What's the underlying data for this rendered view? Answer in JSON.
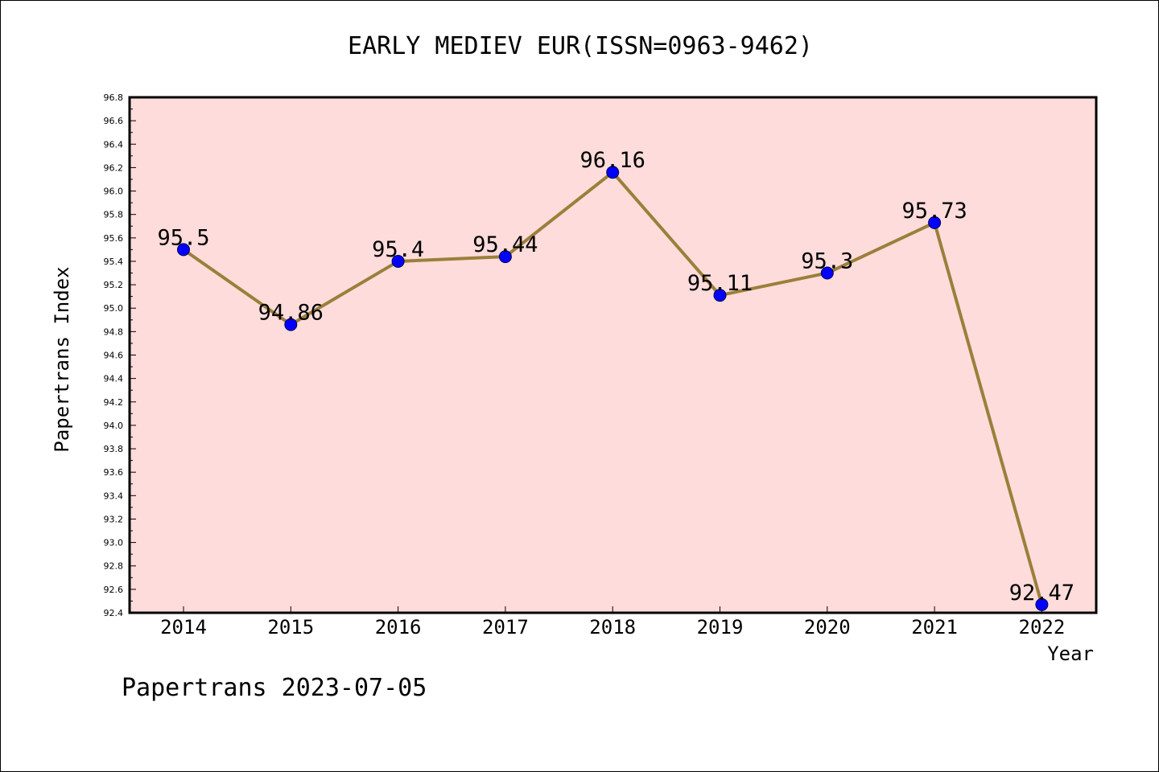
{
  "chart_data": {
    "type": "line",
    "title": "EARLY MEDIEV EUR(ISSN=0963-9462)",
    "xlabel": "Year",
    "ylabel": "Papertrans Index",
    "footer": "Papertrans 2023-07-05",
    "categories": [
      "2014",
      "2015",
      "2016",
      "2017",
      "2018",
      "2019",
      "2020",
      "2021",
      "2022"
    ],
    "values": [
      95.5,
      94.86,
      95.4,
      95.44,
      96.16,
      95.11,
      95.3,
      95.73,
      92.47
    ],
    "data_labels": [
      "95.5",
      "94.86",
      "95.4",
      "95.44",
      "96.16",
      "95.11",
      "95.3",
      "95.73",
      "92.47"
    ],
    "ylim": [
      92.4,
      96.8
    ],
    "yticks": [
      "92.4",
      "92.6",
      "92.8",
      "93.0",
      "93.2",
      "93.4",
      "93.6",
      "93.8",
      "94.0",
      "94.2",
      "94.4",
      "94.6",
      "94.8",
      "95.0",
      "95.2",
      "95.4",
      "95.6",
      "95.8",
      "96.0",
      "96.2",
      "96.4",
      "96.6",
      "96.8"
    ],
    "grid": false,
    "colors": {
      "plot_background": "#fddcdb",
      "line": "#9b7f3a",
      "marker": "#0000ff"
    }
  }
}
